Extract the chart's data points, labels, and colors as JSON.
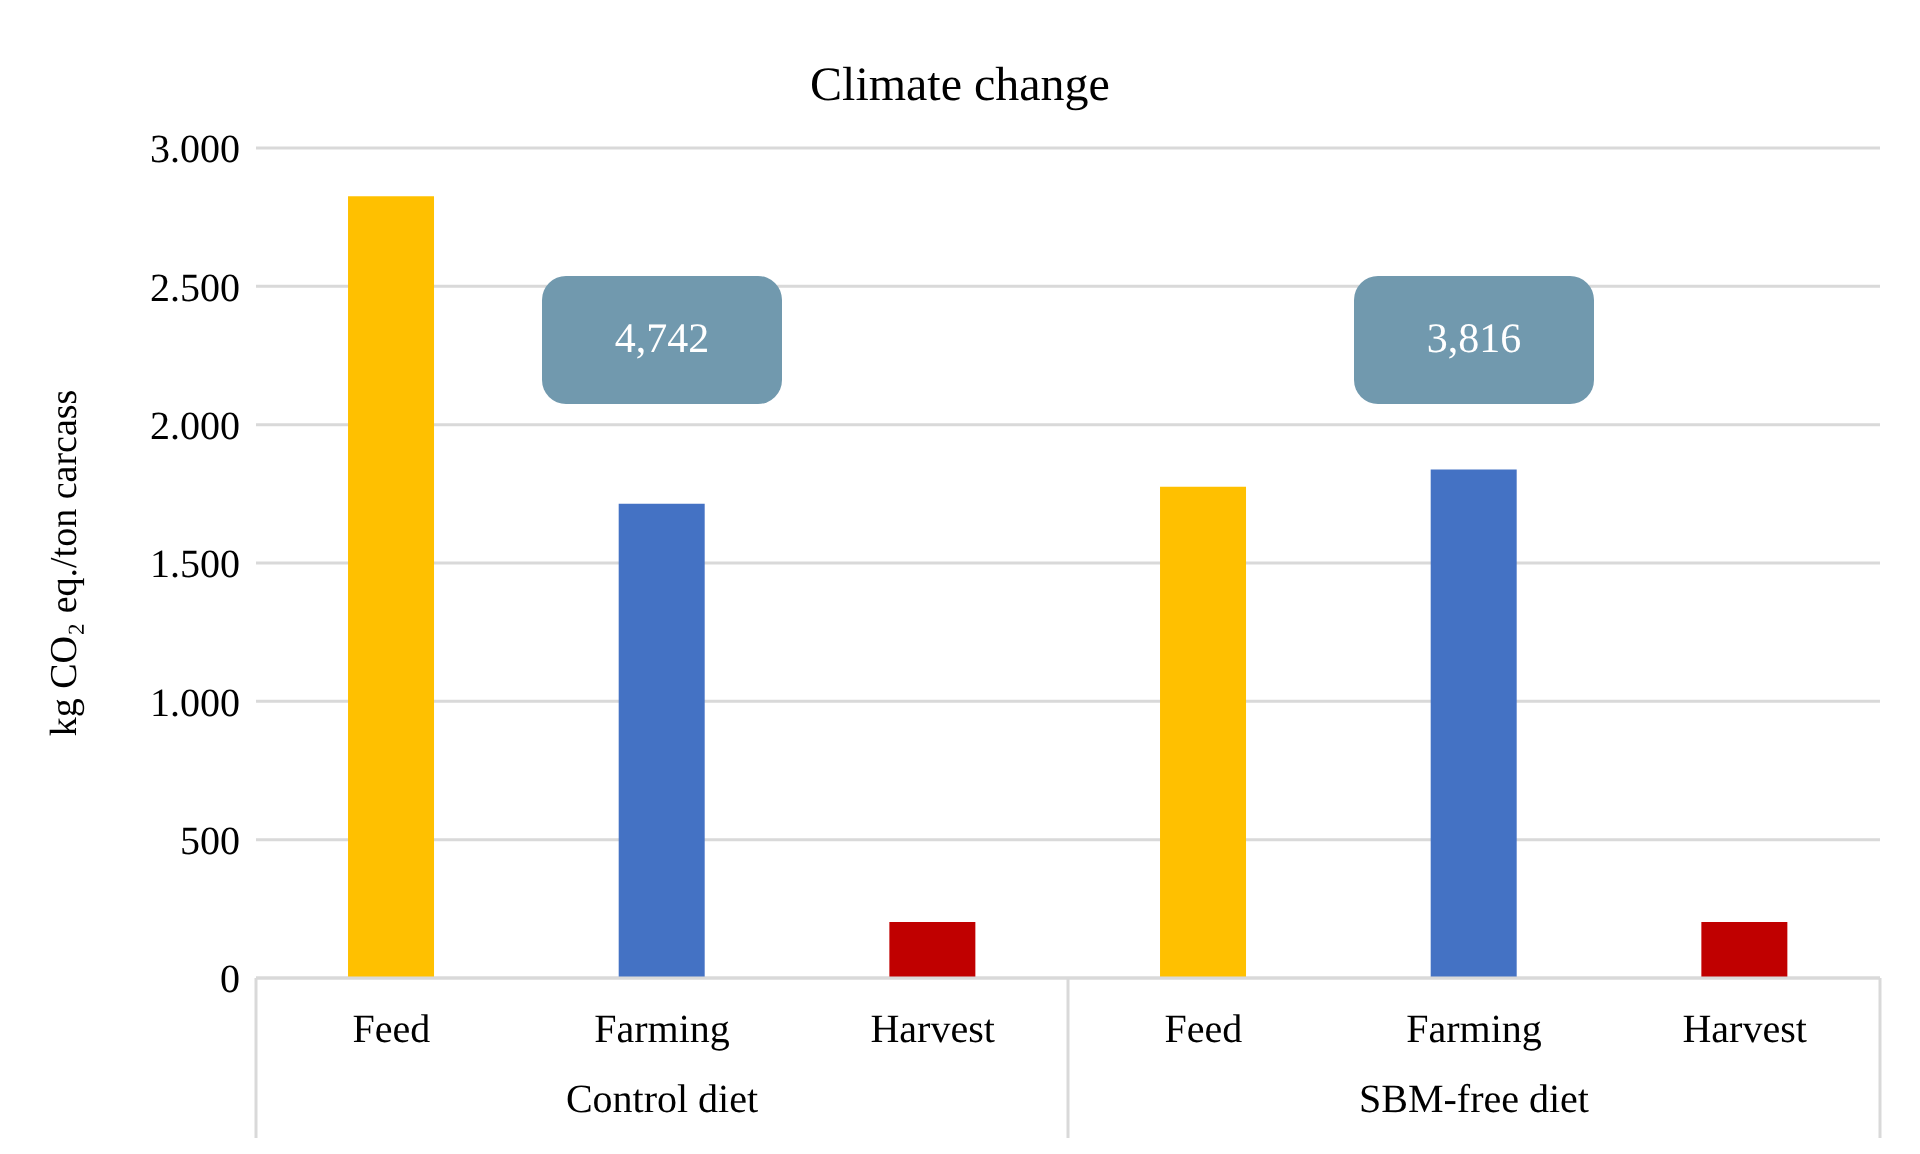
{
  "chart_data": {
    "type": "bar",
    "title": "Climate change",
    "ylabel": "kg CO₂ eq./ton carcass",
    "categories": [
      "Feed",
      "Farming",
      "Harvest",
      "Feed",
      "Farming",
      "Harvest"
    ],
    "values": [
      2826,
      1714,
      202,
      1776,
      1838,
      202
    ],
    "colors": [
      "#ffc000",
      "#4472c4",
      "#c00000",
      "#ffc000",
      "#4472c4",
      "#c00000"
    ],
    "ylim": [
      0,
      3000
    ],
    "yticks": [
      0,
      500,
      {
        "value": 1000,
        "label": "1.000"
      },
      {
        "value": 1500,
        "label": "1.500"
      },
      {
        "value": 2000,
        "label": "2.000"
      },
      {
        "value": 2500,
        "label": "2.500"
      },
      {
        "value": 3000,
        "label": "3.000"
      }
    ],
    "grid": "y",
    "legend": false,
    "annotations": [
      "Control diet",
      "SBM-free diet",
      "4,742",
      "3,816"
    ]
  }
}
